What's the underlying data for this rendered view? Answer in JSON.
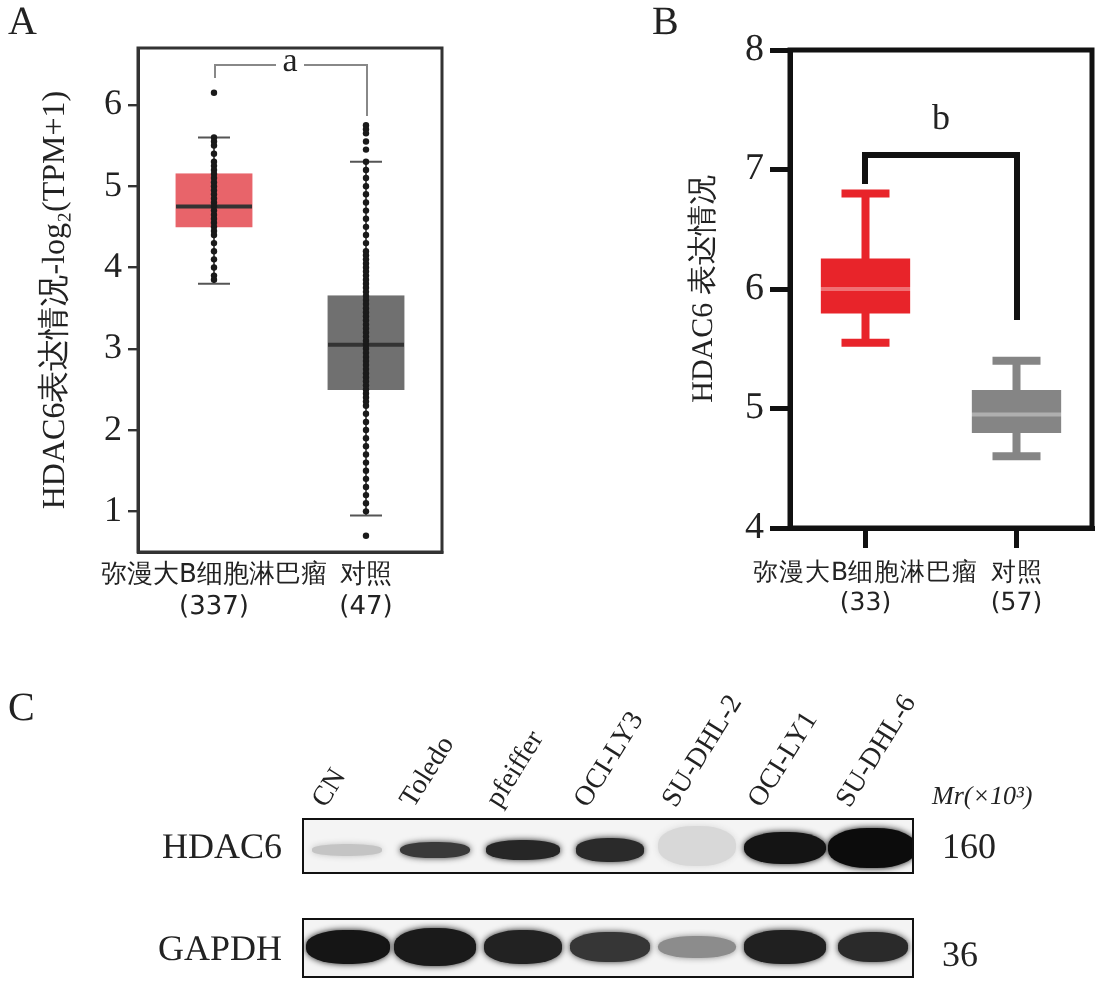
{
  "chart_data": [
    {
      "type": "box",
      "title": "A",
      "ylabel": "HDAC6表达情况-log₂(TPM+1)",
      "categories": [
        "弥漫大B细胞淋巴瘤\n(337)",
        "对照\n(47)"
      ],
      "ylim": [
        0.5,
        6.7
      ],
      "yticks": [
        1,
        2,
        3,
        4,
        5,
        6
      ],
      "annotations": [
        "a"
      ],
      "series": [
        {
          "type": "box",
          "colors": [
            "#e8646a",
            "#707070"
          ],
          "boxes": [
            {
              "low": 3.8,
              "q1": 4.5,
              "median": 4.75,
              "q3": 5.15,
              "high": 5.6
            },
            {
              "low": 0.95,
              "q1": 2.5,
              "median": 3.05,
              "q3": 3.65,
              "high": 5.3
            }
          ]
        },
        {
          "type": "scatter",
          "color": "#1a1a1a",
          "marker": "circle",
          "x": [
            "弥漫大B细胞淋巴瘤\n(337)",
            "弥漫大B细胞淋巴瘤\n(337)",
            "弥漫大B细胞淋巴瘤\n(337)",
            "弥漫大B细胞淋巴瘤\n(337)",
            "弥漫大B细胞淋巴瘤\n(337)",
            "弥漫大B细胞淋巴瘤\n(337)",
            "弥漫大B细胞淋巴瘤\n(337)",
            "弥漫大B细胞淋巴瘤\n(337)",
            "弥漫大B细胞淋巴瘤\n(337)",
            "弥漫大B细胞淋巴瘤\n(337)",
            "弥漫大B细胞淋巴瘤\n(337)",
            "弥漫大B细胞淋巴瘤\n(337)",
            "弥漫大B细胞淋巴瘤\n(337)",
            "弥漫大B细胞淋巴瘤\n(337)",
            "弥漫大B细胞淋巴瘤\n(337)",
            "弥漫大B细胞淋巴瘤\n(337)",
            "弥漫大B细胞淋巴瘤\n(337)",
            "弥漫大B细胞淋巴瘤\n(337)",
            "弥漫大B细胞淋巴瘤\n(337)",
            "弥漫大B细胞淋巴瘤\n(337)",
            "弥漫大B细胞淋巴瘤\n(337)",
            "弥漫大B细胞淋巴瘤\n(337)",
            "弥漫大B细胞淋巴瘤\n(337)",
            "弥漫大B细胞淋巴瘤\n(337)",
            "弥漫大B细胞淋巴瘤\n(337)",
            "弥漫大B细胞淋巴瘤\n(337)",
            "弥漫大B细胞淋巴瘤\n(337)",
            "弥漫大B细胞淋巴瘤\n(337)",
            "弥漫大B细胞淋巴瘤\n(337)",
            "弥漫大B细胞淋巴瘤\n(337)"
          ],
          "values": [
            6.15,
            5.6,
            5.55,
            5.5,
            5.4,
            5.3,
            5.25,
            5.2,
            5.15,
            5.1,
            5.05,
            5,
            4.95,
            4.9,
            4.85,
            4.8,
            4.75,
            4.7,
            4.65,
            4.6,
            4.55,
            4.5,
            4.45,
            4.4,
            4.3,
            4.2,
            4.1,
            4,
            3.9,
            3.85
          ]
        },
        {
          "type": "scatter",
          "color": "#1a1a1a",
          "marker": "circle",
          "x": [
            "对照\n(47)",
            "对照\n(47)",
            "对照\n(47)",
            "对照\n(47)",
            "对照\n(47)",
            "对照\n(47)",
            "对照\n(47)",
            "对照\n(47)",
            "对照\n(47)",
            "对照\n(47)",
            "对照\n(47)",
            "对照\n(47)",
            "对照\n(47)",
            "对照\n(47)",
            "对照\n(47)",
            "对照\n(47)",
            "对照\n(47)",
            "对照\n(47)",
            "对照\n(47)",
            "对照\n(47)",
            "对照\n(47)",
            "对照\n(47)",
            "对照\n(47)",
            "对照\n(47)",
            "对照\n(47)",
            "对照\n(47)",
            "对照\n(47)",
            "对照\n(47)",
            "对照\n(47)",
            "对照\n(47)",
            "对照\n(47)",
            "对照\n(47)",
            "对照\n(47)",
            "对照\n(47)",
            "对照\n(47)",
            "对照\n(47)",
            "对照\n(47)",
            "对照\n(47)",
            "对照\n(47)",
            "对照\n(47)",
            "对照\n(47)",
            "对照\n(47)",
            "对照\n(47)",
            "对照\n(47)",
            "对照\n(47)",
            "对照\n(47)",
            "对照\n(47)",
            "对照\n(47)",
            "对照\n(47)",
            "对照\n(47)",
            "对照\n(47)",
            "对照\n(47)",
            "对照\n(47)",
            "对照\n(47)",
            "对照\n(47)",
            "对照\n(47)",
            "对照\n(47)",
            "对照\n(47)",
            "对照\n(47)",
            "对照\n(47)",
            "对照\n(47)",
            "对照\n(47)",
            "对照\n(47)",
            "对照\n(47)",
            "对照\n(47)",
            "对照\n(47)",
            "对照\n(47)",
            "对照\n(47)",
            "对照\n(47)"
          ],
          "values": [
            5.75,
            5.7,
            5.65,
            5.55,
            5.45,
            5.3,
            5.2,
            5.1,
            5,
            4.9,
            4.8,
            4.7,
            4.6,
            4.5,
            4.4,
            4.3,
            4.2,
            4.15,
            4.1,
            4.05,
            4,
            3.95,
            3.9,
            3.85,
            3.8,
            3.75,
            3.7,
            3.65,
            3.6,
            3.55,
            3.5,
            3.45,
            3.4,
            3.35,
            3.3,
            3.25,
            3.2,
            3.15,
            3.1,
            3.05,
            3,
            2.95,
            2.9,
            2.85,
            2.8,
            2.75,
            2.7,
            2.65,
            2.6,
            2.55,
            2.5,
            2.45,
            2.4,
            2.35,
            2.3,
            2.2,
            2.1,
            2,
            1.9,
            1.8,
            1.7,
            1.6,
            1.5,
            1.4,
            1.3,
            1.2,
            1.1,
            1,
            0.7
          ]
        }
      ]
    },
    {
      "type": "box",
      "title": "B",
      "ylabel": "HDAC6 表达情况",
      "categories": [
        "弥漫大B细胞淋巴瘤\n(33)",
        "对照\n(57)"
      ],
      "ylim": [
        4,
        8
      ],
      "yticks": [
        4,
        5,
        6,
        7,
        8
      ],
      "annotations": [
        "b"
      ],
      "series": [
        {
          "type": "box",
          "colors": [
            "#e8242a",
            "#858585"
          ],
          "boxes": [
            {
              "low": 5.55,
              "q1": 5.8,
              "median": 6,
              "q3": 6.25,
              "high": 6.8
            },
            {
              "low": 4.6,
              "q1": 4.8,
              "median": 4.95,
              "q3": 5.15,
              "high": 5.4
            }
          ]
        }
      ]
    },
    {
      "type": "other",
      "title": "C",
      "categories": [
        "CN",
        "Toledo",
        "pfeiffer",
        "OCI-LY3",
        "SU-DHL-2",
        "OCI-LY1",
        "SU-DHL-6"
      ],
      "y_categories": [
        "HDAC6",
        "GAPDH"
      ],
      "y2_categories": [
        "160",
        "36"
      ],
      "annotations": [
        "Mr(×10³)"
      ]
    }
  ]
}
